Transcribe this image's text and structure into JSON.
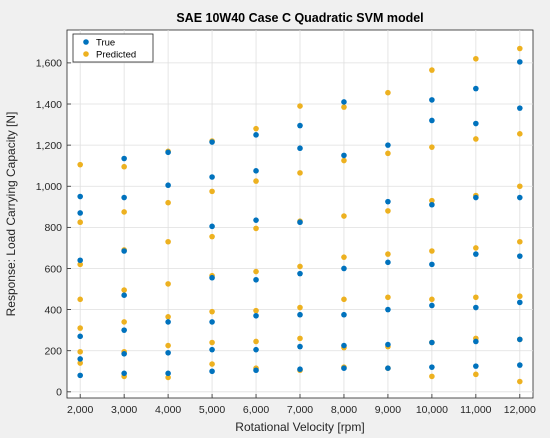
{
  "chart_data": {
    "type": "scatter",
    "title": "SAE 10W40 Case C Quadratic SVM model",
    "xlabel": "Rotational Velocity [rpm]",
    "ylabel": "Response: Load Carrying Capacity [N]",
    "xlim": [
      1700,
      12300
    ],
    "ylim": [
      -30,
      1760
    ],
    "xticks": [
      2000,
      3000,
      4000,
      5000,
      6000,
      7000,
      8000,
      9000,
      10000,
      11000,
      12000
    ],
    "xtick_labels": [
      "2,000",
      "3,000",
      "4,000",
      "5,000",
      "6,000",
      "7,000",
      "8,000",
      "9,000",
      "10,000",
      "11,000",
      "12,000"
    ],
    "yticks": [
      0,
      200,
      400,
      600,
      800,
      1000,
      1200,
      1400,
      1600
    ],
    "ytick_labels": [
      "0",
      "200",
      "400",
      "600",
      "800",
      "1,000",
      "1,200",
      "1,400",
      "1,600"
    ],
    "grid": true,
    "legend_position": "top-left",
    "series": [
      {
        "name": "True",
        "color": "#0072bd",
        "points": [
          [
            2000,
            80
          ],
          [
            2000,
            160
          ],
          [
            2000,
            270
          ],
          [
            2000,
            640
          ],
          [
            2000,
            870
          ],
          [
            2000,
            950
          ],
          [
            3000,
            90
          ],
          [
            3000,
            185
          ],
          [
            3000,
            300
          ],
          [
            3000,
            470
          ],
          [
            3000,
            685
          ],
          [
            3000,
            945
          ],
          [
            3000,
            1135
          ],
          [
            4000,
            90
          ],
          [
            4000,
            190
          ],
          [
            4000,
            340
          ],
          [
            4000,
            1005
          ],
          [
            4000,
            1165
          ],
          [
            5000,
            100
          ],
          [
            5000,
            205
          ],
          [
            5000,
            340
          ],
          [
            5000,
            555
          ],
          [
            5000,
            805
          ],
          [
            5000,
            1045
          ],
          [
            5000,
            1215
          ],
          [
            6000,
            105
          ],
          [
            6000,
            205
          ],
          [
            6000,
            370
          ],
          [
            6000,
            545
          ],
          [
            6000,
            835
          ],
          [
            6000,
            1075
          ],
          [
            6000,
            1250
          ],
          [
            7000,
            110
          ],
          [
            7000,
            220
          ],
          [
            7000,
            375
          ],
          [
            7000,
            575
          ],
          [
            7000,
            825
          ],
          [
            7000,
            1185
          ],
          [
            7000,
            1295
          ],
          [
            8000,
            115
          ],
          [
            8000,
            225
          ],
          [
            8000,
            375
          ],
          [
            8000,
            600
          ],
          [
            8000,
            1150
          ],
          [
            8000,
            1410
          ],
          [
            9000,
            115
          ],
          [
            9000,
            230
          ],
          [
            9000,
            400
          ],
          [
            9000,
            630
          ],
          [
            9000,
            925
          ],
          [
            9000,
            1200
          ],
          [
            10000,
            120
          ],
          [
            10000,
            240
          ],
          [
            10000,
            420
          ],
          [
            10000,
            620
          ],
          [
            10000,
            910
          ],
          [
            10000,
            1320
          ],
          [
            10000,
            1420
          ],
          [
            11000,
            125
          ],
          [
            11000,
            245
          ],
          [
            11000,
            410
          ],
          [
            11000,
            670
          ],
          [
            11000,
            945
          ],
          [
            11000,
            1305
          ],
          [
            11000,
            1475
          ],
          [
            12000,
            130
          ],
          [
            12000,
            255
          ],
          [
            12000,
            435
          ],
          [
            12000,
            660
          ],
          [
            12000,
            945
          ],
          [
            12000,
            1380
          ],
          [
            12000,
            1605
          ]
        ]
      },
      {
        "name": "Predicted",
        "color": "#edb120",
        "points": [
          [
            2000,
            140
          ],
          [
            2000,
            195
          ],
          [
            2000,
            310
          ],
          [
            2000,
            450
          ],
          [
            2000,
            620
          ],
          [
            2000,
            825
          ],
          [
            2000,
            1105
          ],
          [
            3000,
            75
          ],
          [
            3000,
            195
          ],
          [
            3000,
            340
          ],
          [
            3000,
            495
          ],
          [
            3000,
            690
          ],
          [
            3000,
            875
          ],
          [
            3000,
            1095
          ],
          [
            4000,
            70
          ],
          [
            4000,
            225
          ],
          [
            4000,
            365
          ],
          [
            4000,
            525
          ],
          [
            4000,
            730
          ],
          [
            4000,
            920
          ],
          [
            4000,
            1170
          ],
          [
            5000,
            135
          ],
          [
            5000,
            240
          ],
          [
            5000,
            390
          ],
          [
            5000,
            565
          ],
          [
            5000,
            755
          ],
          [
            5000,
            975
          ],
          [
            5000,
            1220
          ],
          [
            6000,
            115
          ],
          [
            6000,
            245
          ],
          [
            6000,
            395
          ],
          [
            6000,
            585
          ],
          [
            6000,
            795
          ],
          [
            6000,
            1025
          ],
          [
            6000,
            1280
          ],
          [
            7000,
            105
          ],
          [
            7000,
            260
          ],
          [
            7000,
            410
          ],
          [
            7000,
            610
          ],
          [
            7000,
            830
          ],
          [
            7000,
            1065
          ],
          [
            7000,
            1390
          ],
          [
            8000,
            120
          ],
          [
            8000,
            215
          ],
          [
            8000,
            450
          ],
          [
            8000,
            655
          ],
          [
            8000,
            855
          ],
          [
            8000,
            1125
          ],
          [
            8000,
            1385
          ],
          [
            9000,
            115
          ],
          [
            9000,
            220
          ],
          [
            9000,
            460
          ],
          [
            9000,
            670
          ],
          [
            9000,
            880
          ],
          [
            9000,
            1160
          ],
          [
            9000,
            1455
          ],
          [
            10000,
            75
          ],
          [
            10000,
            240
          ],
          [
            10000,
            450
          ],
          [
            10000,
            685
          ],
          [
            10000,
            930
          ],
          [
            10000,
            1190
          ],
          [
            10000,
            1565
          ],
          [
            11000,
            85
          ],
          [
            11000,
            260
          ],
          [
            11000,
            460
          ],
          [
            11000,
            700
          ],
          [
            11000,
            955
          ],
          [
            11000,
            1230
          ],
          [
            11000,
            1620
          ],
          [
            12000,
            50
          ],
          [
            12000,
            255
          ],
          [
            12000,
            465
          ],
          [
            12000,
            730
          ],
          [
            12000,
            1000
          ],
          [
            12000,
            1255
          ],
          [
            12000,
            1670
          ]
        ]
      }
    ]
  }
}
